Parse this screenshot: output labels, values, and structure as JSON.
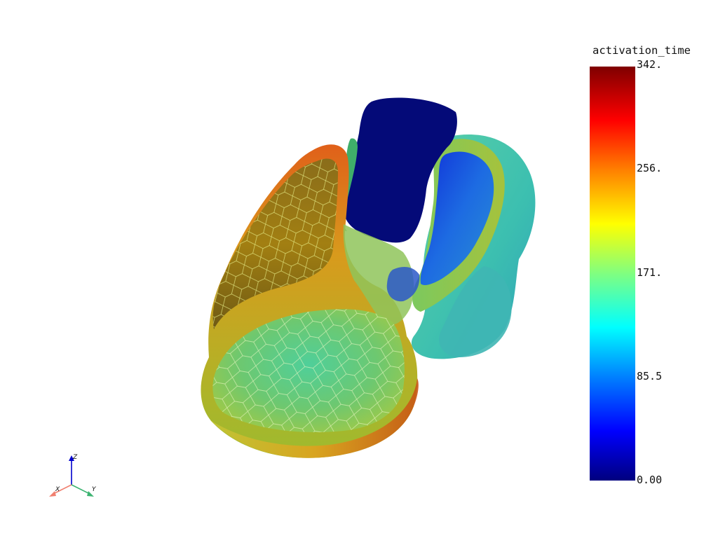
{
  "scalar_bar": {
    "title": "activation_time",
    "ticks": [
      "342.",
      "256.",
      "171.",
      "85.5",
      "0.00"
    ],
    "range": [
      0.0,
      342.0
    ],
    "colormap": "jet"
  },
  "axes": {
    "x_label": "X",
    "y_label": "Y",
    "z_label": "Z",
    "x_color": "#f08070",
    "y_color": "#3cb371",
    "z_color": "#0000cd"
  },
  "scene": {
    "background": "#ffffff",
    "object": "heart-mesh-cutaway"
  }
}
